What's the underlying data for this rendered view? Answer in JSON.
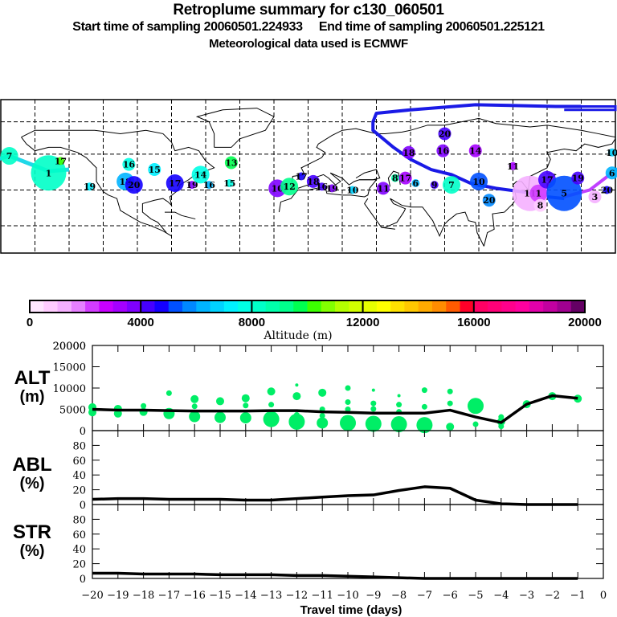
{
  "header": {
    "title": "Retroplume summary for c130_060501",
    "subtitle": "Start time of sampling 20060501.224933     End time of sampling 20060501.225121",
    "met_line": "Meteorological data used is ECMWF"
  },
  "map": {
    "description": "Global map with retroplume cluster centers labelled by travel day, colored by altitude",
    "trajectory_color": "#1a1ae6",
    "clusters": [
      {
        "label": "7",
        "lon": -175,
        "lat": 55,
        "alt": 8200,
        "size": 3
      },
      {
        "label": "1",
        "lon": -152,
        "lat": 45,
        "alt": 8000,
        "size": 5
      },
      {
        "label": "17",
        "lon": -145,
        "lat": 52,
        "alt": 10000,
        "size": 1
      },
      {
        "label": "19",
        "lon": -128,
        "lat": 37,
        "alt": 7000,
        "size": 1
      },
      {
        "label": "16",
        "lon": -105,
        "lat": 50,
        "alt": 7500,
        "size": 2
      },
      {
        "label": "18",
        "lon": -107,
        "lat": 40,
        "alt": 6200,
        "size": 3
      },
      {
        "label": "20",
        "lon": -102,
        "lat": 38,
        "alt": 4500,
        "size": 3
      },
      {
        "label": "15",
        "lon": -90,
        "lat": 47,
        "alt": 7000,
        "size": 2
      },
      {
        "label": "17",
        "lon": -78,
        "lat": 39,
        "alt": 4500,
        "size": 3
      },
      {
        "label": "19",
        "lon": -68,
        "lat": 38,
        "alt": 3800,
        "size": 1
      },
      {
        "label": "14",
        "lon": -63,
        "lat": 44,
        "alt": 7800,
        "size": 3
      },
      {
        "label": "16",
        "lon": -58,
        "lat": 38,
        "alt": 6000,
        "size": 1
      },
      {
        "label": "13",
        "lon": -45,
        "lat": 51,
        "alt": 9500,
        "size": 2
      },
      {
        "label": "15",
        "lon": -46,
        "lat": 39,
        "alt": 7500,
        "size": 1
      },
      {
        "label": "10",
        "lon": -18,
        "lat": 36,
        "alt": 3800,
        "size": 3
      },
      {
        "label": "12",
        "lon": -11,
        "lat": 37,
        "alt": 9000,
        "size": 3
      },
      {
        "label": "17",
        "lon": -4,
        "lat": 43,
        "alt": 4500,
        "size": 1
      },
      {
        "label": "18",
        "lon": 3,
        "lat": 40,
        "alt": 4200,
        "size": 2
      },
      {
        "label": "16",
        "lon": 8,
        "lat": 37,
        "alt": 4300,
        "size": 1
      },
      {
        "label": "19",
        "lon": 14,
        "lat": 36,
        "alt": 3600,
        "size": 1
      },
      {
        "label": "10",
        "lon": 26,
        "lat": 35,
        "alt": 6500,
        "size": 1
      },
      {
        "label": "11",
        "lon": 44,
        "lat": 36,
        "alt": 3800,
        "size": 2
      },
      {
        "label": "8",
        "lon": 51,
        "lat": 42,
        "alt": 8500,
        "size": 1
      },
      {
        "label": "17",
        "lon": 57,
        "lat": 42,
        "alt": 3200,
        "size": 2
      },
      {
        "label": "6",
        "lon": 63,
        "lat": 39,
        "alt": 6000,
        "size": 1
      },
      {
        "label": "9",
        "lon": 74,
        "lat": 38,
        "alt": 4400,
        "size": 1
      },
      {
        "label": "7",
        "lon": 84,
        "lat": 38,
        "alt": 8400,
        "size": 3
      },
      {
        "label": "18",
        "lon": 59,
        "lat": 57,
        "alt": 3600,
        "size": 2
      },
      {
        "label": "20",
        "lon": 80,
        "lat": 68,
        "alt": 4400,
        "size": 2
      },
      {
        "label": "16",
        "lon": 79,
        "lat": 58,
        "alt": 3600,
        "size": 2
      },
      {
        "label": "14",
        "lon": 98,
        "lat": 58,
        "alt": 3000,
        "size": 2
      },
      {
        "label": "10",
        "lon": 100,
        "lat": 40,
        "alt": 5000,
        "size": 3
      },
      {
        "label": "20",
        "lon": 106,
        "lat": 29,
        "alt": 5800,
        "size": 2
      },
      {
        "label": "11",
        "lon": 120,
        "lat": 49,
        "alt": 3000,
        "size": 1
      },
      {
        "label": "11",
        "lon": 130,
        "lat": 33,
        "alt": 1200,
        "size": 5
      },
      {
        "label": "1",
        "lon": 135,
        "lat": 33,
        "alt": 2000,
        "size": 3
      },
      {
        "label": "8",
        "lon": 136,
        "lat": 26,
        "alt": 800,
        "size": 2
      },
      {
        "label": "17",
        "lon": 140,
        "lat": 41,
        "alt": 4200,
        "size": 3
      },
      {
        "label": "5",
        "lon": 150,
        "lat": 33,
        "alt": 5200,
        "size": 5
      },
      {
        "label": "19",
        "lon": 158,
        "lat": 42,
        "alt": 4200,
        "size": 2
      },
      {
        "label": "3",
        "lon": 168,
        "lat": 31,
        "alt": 1000,
        "size": 2
      },
      {
        "label": "20",
        "lon": 175,
        "lat": 35,
        "alt": 4500,
        "size": 1
      },
      {
        "label": "6",
        "lon": 178,
        "lat": 45,
        "alt": 6000,
        "size": 2
      },
      {
        "label": "10",
        "lon": 178,
        "lat": 57,
        "alt": 6800,
        "size": 1
      }
    ]
  },
  "colorbar": {
    "colors": [
      "#ffe6ff",
      "#ffccff",
      "#f5b0ff",
      "#e680ff",
      "#d23cff",
      "#c800ff",
      "#a500ff",
      "#7f00ff",
      "#4600ff",
      "#1400ff",
      "#0050ff",
      "#0088ff",
      "#00b4ff",
      "#00d2ff",
      "#00f0ff",
      "#00ffe6",
      "#00ffc8",
      "#00ffaa",
      "#00ff8c",
      "#00ff50",
      "#3cff00",
      "#82ff00",
      "#b4ff00",
      "#d2ff00",
      "#e6ff00",
      "#ffff00",
      "#ffe100",
      "#ffc800",
      "#ffaa00",
      "#ff8c00",
      "#ff5a00",
      "#ff0028",
      "#ff0064",
      "#ff0078",
      "#ff008c",
      "#ff00a0",
      "#e100aa",
      "#c300a0",
      "#a00090",
      "#640064"
    ],
    "tick_labels": [
      "0",
      "4000",
      "8000",
      "12000",
      "16000",
      "20000"
    ],
    "label": "Altitude (m)"
  },
  "chart_data": [
    {
      "type": "line",
      "panel": "ALT",
      "ylabel": "ALT",
      "yunit": "(m)",
      "ylim": [
        0,
        20000
      ],
      "yticks": [
        "0",
        "5000",
        "10000",
        "15000",
        "20000"
      ],
      "x": [
        -20,
        -19,
        -18,
        -17,
        -16,
        -15,
        -14,
        -13,
        -12,
        -11,
        -10,
        -9,
        -8,
        -7,
        -6,
        -5,
        -4,
        -3,
        -2,
        -1
      ],
      "series": [
        {
          "name": "mean altitude",
          "color": "#000000",
          "values": [
            5000,
            4800,
            4800,
            4700,
            4600,
            4600,
            4600,
            4700,
            4700,
            4400,
            4300,
            4100,
            4100,
            4100,
            4800,
            3200,
            1900,
            6200,
            8200,
            7600
          ]
        }
      ],
      "scatter": {
        "name": "cluster altitudes",
        "color": "#00ee66",
        "points": [
          [
            -20,
            5500,
            2
          ],
          [
            -20,
            4300,
            2
          ],
          [
            -19,
            5100,
            2
          ],
          [
            -19,
            4000,
            2
          ],
          [
            -18,
            5800,
            1
          ],
          [
            -18,
            4400,
            2
          ],
          [
            -17,
            8800,
            1
          ],
          [
            -17,
            4000,
            3
          ],
          [
            -16,
            7400,
            2
          ],
          [
            -16,
            5700,
            1
          ],
          [
            -16,
            3300,
            3
          ],
          [
            -15,
            6900,
            2
          ],
          [
            -15,
            3100,
            3
          ],
          [
            -14,
            7600,
            2
          ],
          [
            -14,
            5900,
            1
          ],
          [
            -14,
            3000,
            3
          ],
          [
            -13,
            9200,
            2
          ],
          [
            -13,
            6100,
            1
          ],
          [
            -13,
            2700,
            4
          ],
          [
            -12,
            10700,
            0
          ],
          [
            -12,
            8100,
            2
          ],
          [
            -12,
            3700,
            1
          ],
          [
            -12,
            2100,
            4
          ],
          [
            -11,
            8900,
            2
          ],
          [
            -11,
            5000,
            1
          ],
          [
            -11,
            3500,
            1
          ],
          [
            -11,
            1800,
            3
          ],
          [
            -10,
            10000,
            1
          ],
          [
            -10,
            6700,
            1
          ],
          [
            -10,
            5000,
            1
          ],
          [
            -10,
            1800,
            4
          ],
          [
            -9,
            9500,
            0
          ],
          [
            -9,
            6400,
            1
          ],
          [
            -9,
            5100,
            1
          ],
          [
            -9,
            1600,
            4
          ],
          [
            -8,
            8200,
            0
          ],
          [
            -8,
            6100,
            1
          ],
          [
            -8,
            4400,
            1
          ],
          [
            -8,
            1500,
            4
          ],
          [
            -7,
            9500,
            1
          ],
          [
            -7,
            5600,
            1
          ],
          [
            -7,
            1300,
            4
          ],
          [
            -6,
            9200,
            1
          ],
          [
            -6,
            6400,
            1
          ],
          [
            -6,
            900,
            2
          ],
          [
            -5,
            5800,
            4
          ],
          [
            -5,
            1500,
            1
          ],
          [
            -4,
            3200,
            1
          ],
          [
            -4,
            2100,
            2
          ],
          [
            -4,
            1000,
            1
          ],
          [
            -3,
            6200,
            2
          ],
          [
            -2,
            8100,
            2
          ],
          [
            -1,
            7500,
            2
          ]
        ]
      }
    },
    {
      "type": "line",
      "panel": "ABL",
      "ylabel": "ABL",
      "yunit": "(%)",
      "ylim": [
        0,
        100
      ],
      "yticks": [
        "0",
        "20",
        "40",
        "60",
        "80"
      ],
      "x": [
        -20,
        -19,
        -18,
        -17,
        -16,
        -15,
        -14,
        -13,
        -12,
        -11,
        -10,
        -9,
        -8,
        -7,
        -6,
        -5,
        -4,
        -3,
        -2,
        -1
      ],
      "series": [
        {
          "name": "ABL fraction",
          "color": "#000000",
          "values": [
            7,
            8,
            8,
            7,
            7,
            7,
            6,
            6,
            8,
            10,
            12,
            13,
            19,
            24,
            22,
            6,
            1,
            0,
            0,
            0
          ]
        }
      ]
    },
    {
      "type": "line",
      "panel": "STR",
      "ylabel": "STR",
      "yunit": "(%)",
      "ylim": [
        0,
        100
      ],
      "yticks": [
        "0",
        "20",
        "40",
        "60",
        "80"
      ],
      "x": [
        -20,
        -19,
        -18,
        -17,
        -16,
        -15,
        -14,
        -13,
        -12,
        -11,
        -10,
        -9,
        -8,
        -7,
        -6,
        -5,
        -4,
        -3,
        -2,
        -1
      ],
      "series": [
        {
          "name": "stratospheric fraction",
          "color": "#000000",
          "values": [
            7,
            7,
            6,
            6,
            6,
            5,
            5,
            5,
            4,
            4,
            3,
            2,
            1,
            0,
            0,
            0,
            0,
            0,
            0,
            0
          ]
        }
      ]
    }
  ],
  "xaxis": {
    "tick_labels": [
      "−20",
      "−19",
      "−18",
      "−17",
      "−16",
      "−15",
      "−14",
      "−13",
      "−12",
      "−11",
      "−10",
      "−9",
      "−8",
      "−7",
      "−6",
      "−5",
      "−4",
      "−3",
      "−2",
      "−1",
      "0"
    ],
    "label": "Travel time (days)",
    "xlim": [
      -20,
      0
    ]
  }
}
